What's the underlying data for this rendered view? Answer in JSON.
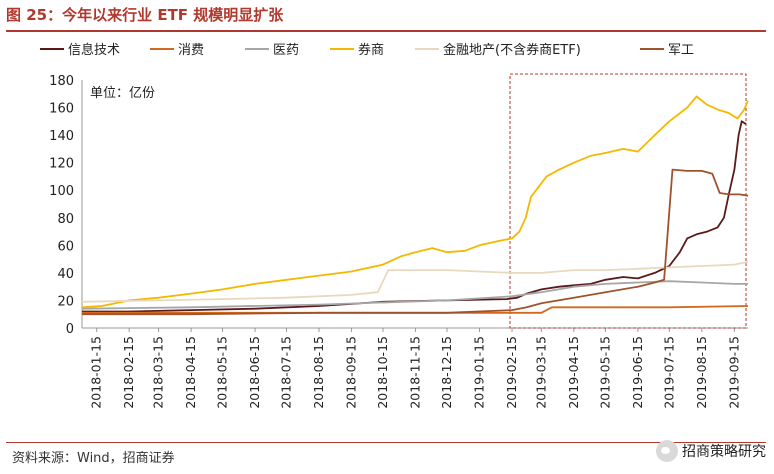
{
  "header": {
    "title": "图 25：今年以来行业 ETF 规模明显扩张"
  },
  "footer": {
    "source": "资料来源：Wind，招商证券",
    "watermark": "招商策略研究"
  },
  "chart_data": {
    "type": "line",
    "unit_label": "单位：亿份",
    "ylim": [
      0,
      180
    ],
    "yticks": [
      0,
      20,
      40,
      60,
      80,
      100,
      120,
      140,
      160,
      180
    ],
    "x_tick_labels": [
      "2018-01-15",
      "2018-02-15",
      "2018-03-15",
      "2018-04-15",
      "2018-05-15",
      "2018-06-15",
      "2018-07-15",
      "2018-08-15",
      "2018-09-15",
      "2018-10-15",
      "2018-11-15",
      "2018-12-15",
      "2019-01-15",
      "2019-02-15",
      "2019-03-15",
      "2019-04-15",
      "2019-05-15",
      "2019-06-15",
      "2019-07-15",
      "2019-08-15",
      "2019-09-15"
    ],
    "x_range": [
      "2018-01-01",
      "2019-09-28"
    ],
    "highlight_range": [
      "2019-02-15",
      "2019-09-28"
    ],
    "legend_position": "top",
    "grid": false,
    "series": [
      {
        "name": "信息技术",
        "color": "#5B1A1A",
        "points": [
          [
            "2018-01-01",
            12
          ],
          [
            "2018-02-15",
            12
          ],
          [
            "2018-04-15",
            13
          ],
          [
            "2018-06-15",
            14
          ],
          [
            "2018-08-15",
            16
          ],
          [
            "2018-10-15",
            19
          ],
          [
            "2018-12-15",
            20
          ],
          [
            "2019-02-10",
            21
          ],
          [
            "2019-02-20",
            22
          ],
          [
            "2019-03-01",
            25
          ],
          [
            "2019-03-15",
            28
          ],
          [
            "2019-04-01",
            30
          ],
          [
            "2019-04-15",
            31
          ],
          [
            "2019-05-01",
            32
          ],
          [
            "2019-05-15",
            35
          ],
          [
            "2019-06-01",
            37
          ],
          [
            "2019-06-15",
            36
          ],
          [
            "2019-07-01",
            40
          ],
          [
            "2019-07-15",
            45
          ],
          [
            "2019-07-25",
            55
          ],
          [
            "2019-08-01",
            65
          ],
          [
            "2019-08-10",
            68
          ],
          [
            "2019-08-20",
            70
          ],
          [
            "2019-08-30",
            73
          ],
          [
            "2019-09-05",
            80
          ],
          [
            "2019-09-10",
            98
          ],
          [
            "2019-09-15",
            115
          ],
          [
            "2019-09-19",
            140
          ],
          [
            "2019-09-22",
            150
          ],
          [
            "2019-09-26",
            148
          ]
        ]
      },
      {
        "name": "消费",
        "color": "#D2691E",
        "points": [
          [
            "2018-01-01",
            11
          ],
          [
            "2018-04-15",
            11
          ],
          [
            "2018-08-15",
            11
          ],
          [
            "2018-12-15",
            11
          ],
          [
            "2019-02-15",
            11
          ],
          [
            "2019-03-15",
            11
          ],
          [
            "2019-03-25",
            15
          ],
          [
            "2019-05-15",
            15
          ],
          [
            "2019-07-15",
            15
          ],
          [
            "2019-09-28",
            16
          ]
        ]
      },
      {
        "name": "医药",
        "color": "#A6A6A6",
        "points": [
          [
            "2018-01-01",
            14
          ],
          [
            "2018-04-15",
            15
          ],
          [
            "2018-08-15",
            17
          ],
          [
            "2018-12-15",
            20
          ],
          [
            "2019-02-15",
            23
          ],
          [
            "2019-03-15",
            26
          ],
          [
            "2019-04-15",
            30
          ],
          [
            "2019-05-15",
            32
          ],
          [
            "2019-06-15",
            33
          ],
          [
            "2019-07-15",
            34
          ],
          [
            "2019-08-15",
            33
          ],
          [
            "2019-09-15",
            32
          ],
          [
            "2019-09-28",
            32
          ]
        ]
      },
      {
        "name": "券商",
        "color": "#F5B800",
        "points": [
          [
            "2018-01-01",
            15
          ],
          [
            "2018-01-20",
            16
          ],
          [
            "2018-02-15",
            20
          ],
          [
            "2018-03-15",
            22
          ],
          [
            "2018-04-15",
            25
          ],
          [
            "2018-05-15",
            28
          ],
          [
            "2018-06-15",
            32
          ],
          [
            "2018-07-15",
            35
          ],
          [
            "2018-08-15",
            38
          ],
          [
            "2018-09-15",
            41
          ],
          [
            "2018-10-15",
            46
          ],
          [
            "2018-11-01",
            52
          ],
          [
            "2018-11-15",
            55
          ],
          [
            "2018-12-01",
            58
          ],
          [
            "2018-12-15",
            55
          ],
          [
            "2019-01-01",
            56
          ],
          [
            "2019-01-15",
            60
          ],
          [
            "2019-02-01",
            63
          ],
          [
            "2019-02-15",
            65
          ],
          [
            "2019-02-22",
            70
          ],
          [
            "2019-02-28",
            80
          ],
          [
            "2019-03-05",
            95
          ],
          [
            "2019-03-10",
            100
          ],
          [
            "2019-03-20",
            110
          ],
          [
            "2019-04-01",
            115
          ],
          [
            "2019-04-15",
            120
          ],
          [
            "2019-05-01",
            125
          ],
          [
            "2019-05-15",
            127
          ],
          [
            "2019-06-01",
            130
          ],
          [
            "2019-06-15",
            128
          ],
          [
            "2019-07-01",
            140
          ],
          [
            "2019-07-15",
            150
          ],
          [
            "2019-08-01",
            160
          ],
          [
            "2019-08-10",
            168
          ],
          [
            "2019-08-20",
            162
          ],
          [
            "2019-09-01",
            158
          ],
          [
            "2019-09-10",
            156
          ],
          [
            "2019-09-18",
            152
          ],
          [
            "2019-09-24",
            158
          ],
          [
            "2019-09-28",
            165
          ]
        ]
      },
      {
        "name": "金融地产(不含券商ETF)",
        "color": "#E8D9BD",
        "points": [
          [
            "2018-01-01",
            19
          ],
          [
            "2018-03-15",
            20
          ],
          [
            "2018-05-15",
            21
          ],
          [
            "2018-07-15",
            22
          ],
          [
            "2018-09-15",
            24
          ],
          [
            "2018-10-10",
            26
          ],
          [
            "2018-10-20",
            42
          ],
          [
            "2018-12-15",
            42
          ],
          [
            "2019-02-15",
            40
          ],
          [
            "2019-03-15",
            40
          ],
          [
            "2019-04-15",
            42
          ],
          [
            "2019-05-15",
            42
          ],
          [
            "2019-06-15",
            43
          ],
          [
            "2019-07-15",
            44
          ],
          [
            "2019-08-15",
            45
          ],
          [
            "2019-09-15",
            46
          ],
          [
            "2019-09-28",
            48
          ]
        ]
      },
      {
        "name": "军工",
        "color": "#A0522D",
        "points": [
          [
            "2018-01-01",
            10
          ],
          [
            "2018-04-15",
            10
          ],
          [
            "2018-08-15",
            11
          ],
          [
            "2018-12-15",
            11
          ],
          [
            "2019-02-15",
            13
          ],
          [
            "2019-03-01",
            15
          ],
          [
            "2019-03-15",
            18
          ],
          [
            "2019-04-15",
            22
          ],
          [
            "2019-05-15",
            26
          ],
          [
            "2019-06-15",
            30
          ],
          [
            "2019-07-01",
            33
          ],
          [
            "2019-07-10",
            35
          ],
          [
            "2019-07-18",
            115
          ],
          [
            "2019-08-01",
            114
          ],
          [
            "2019-08-15",
            114
          ],
          [
            "2019-08-25",
            112
          ],
          [
            "2019-09-01",
            98
          ],
          [
            "2019-09-10",
            97
          ],
          [
            "2019-09-20",
            97
          ],
          [
            "2019-09-28",
            96
          ]
        ]
      }
    ]
  }
}
